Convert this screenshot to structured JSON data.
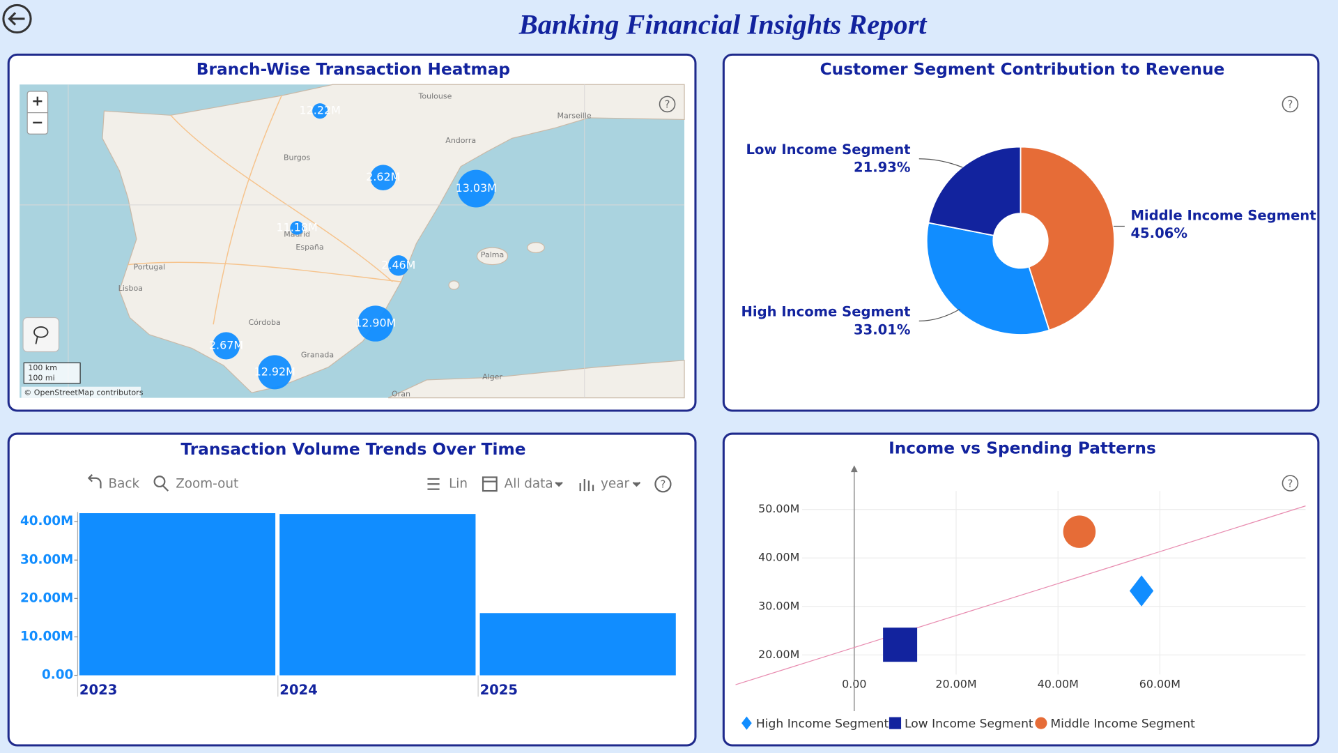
{
  "title": "Banking Financial Insights Report",
  "chart_data": [
    {
      "type": "map",
      "title": "Branch-Wise Transaction Heatmap",
      "values": [
        12.22,
        2.62,
        13.03,
        11.18,
        2.46,
        12.9,
        2.67,
        12.92
      ],
      "value_labels": [
        "12.22M",
        "2.62M",
        "13.03M",
        "11.18M",
        "2.46M",
        "12.90M",
        "2.67M",
        "12.92M"
      ],
      "color": "#118dff",
      "places": [
        "Toulouse",
        "Marseille",
        "Andorra",
        "Burgos",
        "Portugal",
        "Lisboa",
        "España",
        "Madrid",
        "Palma",
        "Granada",
        "Córdoba",
        "Alger",
        "Oran"
      ],
      "zoom_in": "+",
      "zoom_out": "−",
      "scale_km": "100 km",
      "scale_mi": "100 mi",
      "attribution": "© OpenStreetMap contributors"
    },
    {
      "type": "donut",
      "title": "Customer Segment Contribution to Revenue",
      "categories": [
        "Middle Income Segment",
        "High Income Segment",
        "Low Income Segment"
      ],
      "values": [
        45.06,
        33.01,
        21.93
      ],
      "value_labels": [
        "45.06%",
        "33.01%",
        "21.93%"
      ],
      "colors": [
        "#e66c37",
        "#118dff",
        "#12239e"
      ]
    },
    {
      "type": "bar",
      "title": "Transaction Volume Trends Over Time",
      "categories": [
        "2023",
        "2024",
        "2025"
      ],
      "values": [
        42200000,
        42000000,
        16200000
      ],
      "color": "#118dff",
      "ylim": [
        0,
        42500000
      ],
      "yticks": [
        {
          "value": 0,
          "label": "0.00"
        },
        {
          "value": 10000000,
          "label": "10.00M"
        },
        {
          "value": 20000000,
          "label": "20.00M"
        },
        {
          "value": 30000000,
          "label": "30.00M"
        },
        {
          "value": 40000000,
          "label": "40.00M"
        }
      ],
      "toolbar": [
        "Back",
        "Zoom-out",
        "Lin",
        "All data",
        "year"
      ]
    },
    {
      "type": "scatter",
      "title": "Income vs Spending Patterns",
      "series": [
        {
          "name": "High Income Segment",
          "color": "#118dff",
          "marker": "diamond",
          "x": [
            56400000
          ],
          "values": [
            33200000
          ]
        },
        {
          "name": "Low Income Segment",
          "color": "#12239e",
          "marker": "square",
          "x": [
            9000000
          ],
          "values": [
            22100000
          ]
        },
        {
          "name": "Middle Income Segment",
          "color": "#e66c37",
          "marker": "circle",
          "x": [
            44200000
          ],
          "values": [
            45400000
          ]
        }
      ],
      "xlim": [
        -23300000,
        88600000
      ],
      "ylim": [
        8400000,
        59100000
      ],
      "xticks": [
        {
          "value": 0,
          "label": "0.00"
        },
        {
          "value": 20000000,
          "label": "20.00M"
        },
        {
          "value": 40000000,
          "label": "40.00M"
        },
        {
          "value": 60000000,
          "label": "60.00M"
        }
      ],
      "yticks": [
        {
          "value": 20000000,
          "label": "20.00M"
        },
        {
          "value": 30000000,
          "label": "30.00M"
        },
        {
          "value": 40000000,
          "label": "40.00M"
        },
        {
          "value": 50000000,
          "label": "50.00M"
        }
      ],
      "grid": true,
      "trendline": true,
      "trendline_color": "#e88cb0"
    }
  ]
}
